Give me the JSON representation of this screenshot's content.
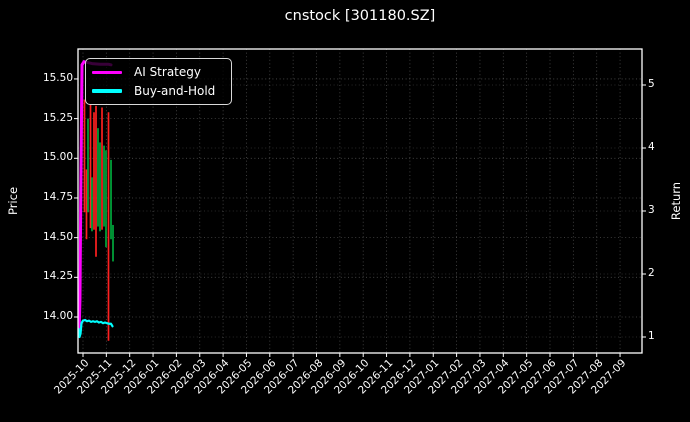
{
  "window": {
    "background": "#000000",
    "foreground": "#ffffff",
    "grid_color": "#8a8a8a"
  },
  "chart_data": {
    "type": "mixed",
    "subtypes": [
      "ohlc-bar",
      "line"
    ],
    "title": "cnstock [301180.SZ]",
    "grid": true,
    "legend_position": "upper-left",
    "left_axis": {
      "label": "Price",
      "tick_labels": [
        "15.50",
        "15.25",
        "15.00",
        "14.75",
        "14.50",
        "14.25",
        "14.00"
      ],
      "tick_values": [
        15.5,
        15.25,
        15.0,
        14.75,
        14.5,
        14.25,
        14.0
      ],
      "range": [
        13.77,
        15.69
      ]
    },
    "right_axis": {
      "label": "Return",
      "tick_labels": [
        "5",
        "4",
        "3",
        "2",
        "1"
      ],
      "tick_values": [
        5,
        4,
        3,
        2,
        1
      ],
      "range": [
        0.75,
        5.57
      ]
    },
    "x_axis": {
      "unit": "months since 2025-10",
      "tick_labels": [
        "2025-10",
        "2025-11",
        "2025-12",
        "2026-01",
        "2026-02",
        "2026-03",
        "2026-04",
        "2026-05",
        "2026-06",
        "2026-07",
        "2026-08",
        "2026-09",
        "2026-10",
        "2026-11",
        "2026-12",
        "2027-01",
        "2027-02",
        "2027-03",
        "2027-04",
        "2027-05",
        "2027-06",
        "2027-07",
        "2027-08",
        "2027-09"
      ],
      "tick_values": [
        0,
        1,
        2,
        3,
        4,
        5,
        6,
        7,
        8,
        9,
        10,
        11,
        12,
        13,
        14,
        15,
        16,
        17,
        18,
        19,
        20,
        21,
        22,
        23
      ],
      "range": [
        -0.21,
        23.94
      ]
    },
    "legend": {
      "items": [
        {
          "label": "AI Strategy",
          "color": "#ff00ff"
        },
        {
          "label": "Buy-and-Hold",
          "color": "#00ffff"
        }
      ]
    },
    "series": {
      "ai_strategy_return": {
        "axis": "right",
        "color": "#ff00ff",
        "points": [
          [
            -0.171,
            1.03
          ],
          [
            -0.13,
            1.6
          ],
          [
            -0.09,
            3.5
          ],
          [
            -0.043,
            5.32
          ],
          [
            0.043,
            5.37
          ],
          [
            0.39,
            5.34
          ],
          [
            0.73,
            5.33
          ],
          [
            1.07,
            5.33
          ],
          [
            1.2,
            5.32
          ]
        ]
      },
      "buy_hold_return": {
        "axis": "right",
        "color": "#00ffff",
        "points": [
          [
            -0.193,
            1.13
          ],
          [
            -0.15,
            1.0
          ],
          [
            -0.107,
            1.05
          ],
          [
            -0.064,
            1.22
          ],
          [
            0.0,
            1.26
          ],
          [
            0.086,
            1.27
          ],
          [
            0.171,
            1.25
          ],
          [
            0.257,
            1.26
          ],
          [
            0.343,
            1.24
          ],
          [
            0.428,
            1.25
          ],
          [
            0.514,
            1.24
          ],
          [
            0.6,
            1.25
          ],
          [
            0.685,
            1.23
          ],
          [
            0.771,
            1.24
          ],
          [
            0.857,
            1.22
          ],
          [
            0.942,
            1.23
          ],
          [
            1.028,
            1.22
          ],
          [
            1.114,
            1.21
          ],
          [
            1.2,
            1.21
          ],
          [
            1.264,
            1.17
          ]
        ]
      },
      "price_bars": {
        "axis": "left",
        "up_color": "#00a83c",
        "down_color": "#ff2020",
        "bars": [
          {
            "x": 0.064,
            "high": 15.37,
            "low": 14.66,
            "dir": "down"
          },
          {
            "x": 0.15,
            "high": 14.93,
            "low": 14.49,
            "dir": "down"
          },
          {
            "x": 0.214,
            "high": 15.25,
            "low": 14.66,
            "dir": "up"
          },
          {
            "x": 0.321,
            "high": 15.34,
            "low": 14.56,
            "dir": "down"
          },
          {
            "x": 0.385,
            "high": 14.88,
            "low": 14.54,
            "dir": "up"
          },
          {
            "x": 0.471,
            "high": 15.29,
            "low": 14.55,
            "dir": "down"
          },
          {
            "x": 0.557,
            "high": 15.33,
            "low": 14.38,
            "dir": "down"
          },
          {
            "x": 0.642,
            "high": 15.19,
            "low": 14.57,
            "dir": "up"
          },
          {
            "x": 0.728,
            "high": 15.1,
            "low": 14.54,
            "dir": "up"
          },
          {
            "x": 0.814,
            "high": 15.32,
            "low": 14.55,
            "dir": "down"
          },
          {
            "x": 0.9,
            "high": 15.08,
            "low": 14.57,
            "dir": "up"
          },
          {
            "x": 0.985,
            "high": 15.05,
            "low": 14.44,
            "dir": "up"
          },
          {
            "x": 1.092,
            "high": 15.29,
            "low": 13.85,
            "dir": "down"
          },
          {
            "x": 1.2,
            "high": 14.99,
            "low": 14.49,
            "dir": "up"
          },
          {
            "x": 1.285,
            "high": 14.58,
            "low": 14.35,
            "dir": "up"
          }
        ]
      }
    }
  }
}
